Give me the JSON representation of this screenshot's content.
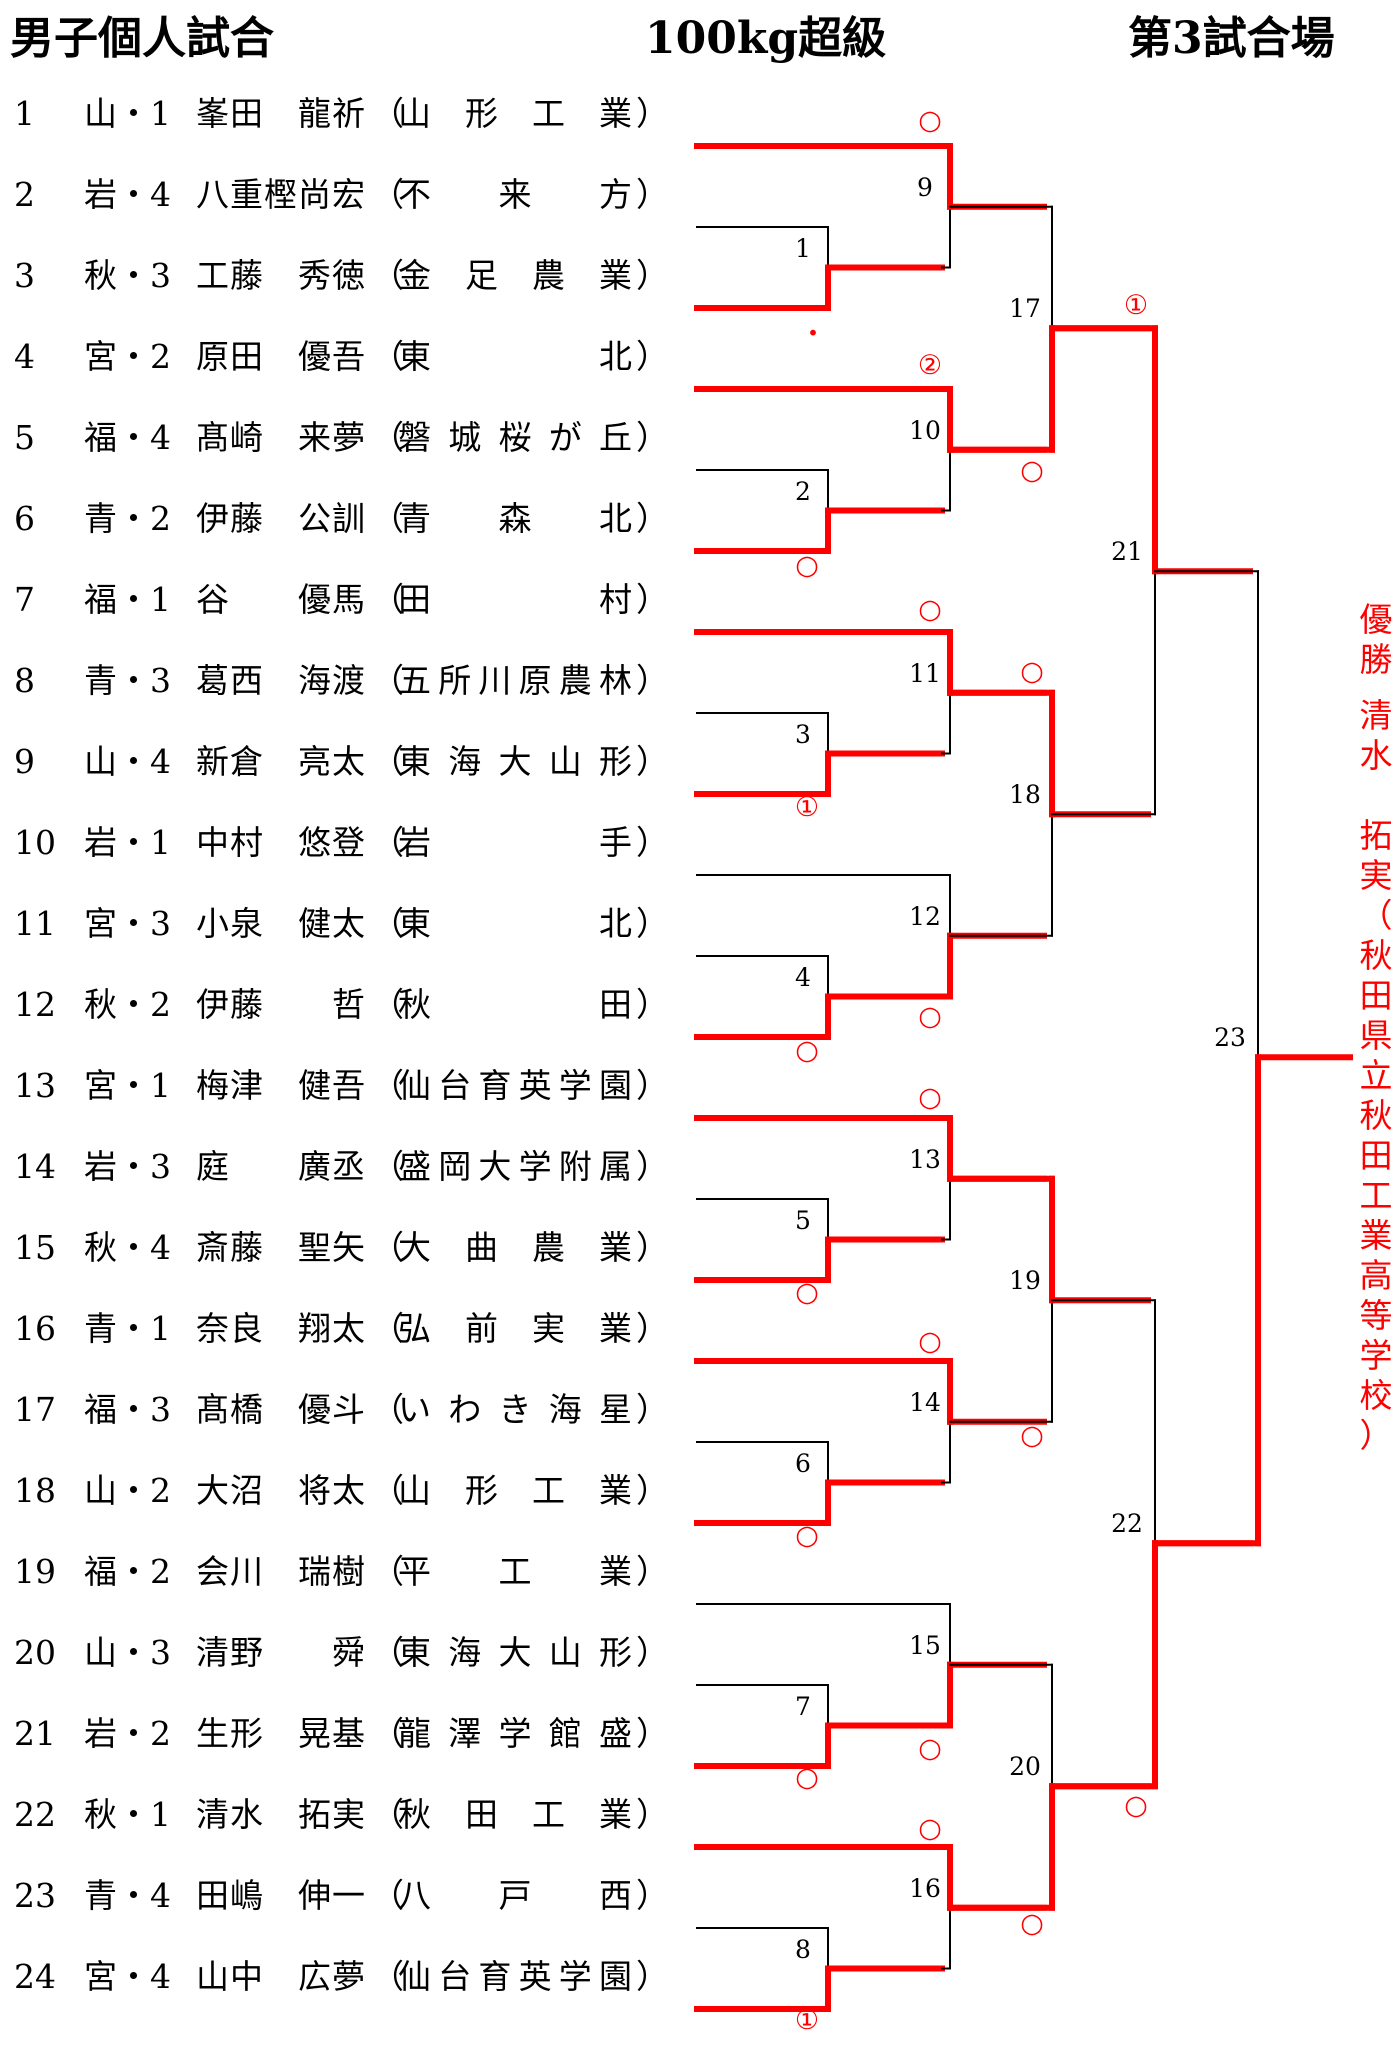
{
  "header": {
    "category": "男子個人試合",
    "weight": "100kg超級",
    "venue": "第3試合場"
  },
  "entries": [
    {
      "no": "1",
      "pref": "山・1",
      "name": "峯田　龍祈",
      "team": [
        "山",
        "形",
        "工",
        "業"
      ]
    },
    {
      "no": "2",
      "pref": "岩・4",
      "name": "八重樫尚宏",
      "team": [
        "不",
        "来",
        "方"
      ]
    },
    {
      "no": "3",
      "pref": "秋・3",
      "name": "工藤　秀徳",
      "team": [
        "金",
        "足",
        "農",
        "業"
      ]
    },
    {
      "no": "4",
      "pref": "宮・2",
      "name": "原田　優吾",
      "team": [
        "東",
        "北"
      ]
    },
    {
      "no": "5",
      "pref": "福・4",
      "name": "髙崎　来夢",
      "team": [
        "磐",
        "城",
        "桜",
        "が",
        "丘"
      ]
    },
    {
      "no": "6",
      "pref": "青・2",
      "name": "伊藤　公訓",
      "team": [
        "青",
        "森",
        "北"
      ]
    },
    {
      "no": "7",
      "pref": "福・1",
      "name": "谷　　優馬",
      "team": [
        "田",
        "村"
      ]
    },
    {
      "no": "8",
      "pref": "青・3",
      "name": "葛西　海渡",
      "team": [
        "五",
        "所",
        "川",
        "原",
        "農",
        "林"
      ]
    },
    {
      "no": "9",
      "pref": "山・4",
      "name": "新倉　亮太",
      "team": [
        "東",
        "海",
        "大",
        "山",
        "形"
      ]
    },
    {
      "no": "10",
      "pref": "岩・1",
      "name": "中村　悠登",
      "team": [
        "岩",
        "手"
      ]
    },
    {
      "no": "11",
      "pref": "宮・3",
      "name": "小泉　健太",
      "team": [
        "東",
        "北"
      ]
    },
    {
      "no": "12",
      "pref": "秋・2",
      "name": "伊藤　　哲",
      "team": [
        "秋",
        "田"
      ]
    },
    {
      "no": "13",
      "pref": "宮・1",
      "name": "梅津　健吾",
      "team": [
        "仙",
        "台",
        "育",
        "英",
        "学",
        "園"
      ]
    },
    {
      "no": "14",
      "pref": "岩・3",
      "name": "庭　　廣丞",
      "team": [
        "盛",
        "岡",
        "大",
        "学",
        "附",
        "属"
      ]
    },
    {
      "no": "15",
      "pref": "秋・4",
      "name": "斎藤　聖矢",
      "team": [
        "大",
        "曲",
        "農",
        "業"
      ]
    },
    {
      "no": "16",
      "pref": "青・1",
      "name": "奈良　翔太",
      "team": [
        "弘",
        "前",
        "実",
        "業"
      ]
    },
    {
      "no": "17",
      "pref": "福・3",
      "name": "髙橋　優斗",
      "team": [
        "い",
        "わ",
        "き",
        "海",
        "星"
      ]
    },
    {
      "no": "18",
      "pref": "山・2",
      "name": "大沼　将太",
      "team": [
        "山",
        "形",
        "工",
        "業"
      ]
    },
    {
      "no": "19",
      "pref": "福・2",
      "name": "会川　瑞樹",
      "team": [
        "平",
        "工",
        "業"
      ]
    },
    {
      "no": "20",
      "pref": "山・3",
      "name": "清野　　舜",
      "team": [
        "東",
        "海",
        "大",
        "山",
        "形"
      ]
    },
    {
      "no": "21",
      "pref": "岩・2",
      "name": "生形　晃基",
      "team": [
        "龍",
        "澤",
        "学",
        "館",
        "盛"
      ]
    },
    {
      "no": "22",
      "pref": "秋・1",
      "name": "清水　拓実",
      "team": [
        "秋",
        "田",
        "工",
        "業"
      ]
    },
    {
      "no": "23",
      "pref": "青・4",
      "name": "田嶋　伸一",
      "team": [
        "八",
        "戸",
        "西"
      ]
    },
    {
      "no": "24",
      "pref": "宮・4",
      "name": "山中　広夢",
      "team": [
        "仙",
        "台",
        "育",
        "英",
        "学",
        "園"
      ]
    }
  ],
  "paren_open": "（",
  "paren_close": "）",
  "match_numbers": [
    "1",
    "2",
    "3",
    "4",
    "5",
    "6",
    "7",
    "8",
    "9",
    "10",
    "11",
    "12",
    "13",
    "14",
    "15",
    "16",
    "17",
    "18",
    "19",
    "20",
    "21",
    "22",
    "23"
  ],
  "result_marks": {
    "m1": "・",
    "m2": "○",
    "m3": "①",
    "m4": "○",
    "m5": "○",
    "m6": "○",
    "m7": "○",
    "m8": "①",
    "m9": "○",
    "m10_top": "②",
    "m10_bottom": "○",
    "m11": "○",
    "m12": "○",
    "m13": "○",
    "m14": "○",
    "m15": "○",
    "m16": "○",
    "m17": "①",
    "m18": "○",
    "m19": "○",
    "m20": "○",
    "m22": "○"
  },
  "winner": {
    "label": "優勝",
    "name": "清水　拓実",
    "school": "（秋田県立秋田工業高等学校）"
  },
  "colors": {
    "win_line": "#ff0000",
    "line": "#000000",
    "winner_text": "#ff0000"
  }
}
